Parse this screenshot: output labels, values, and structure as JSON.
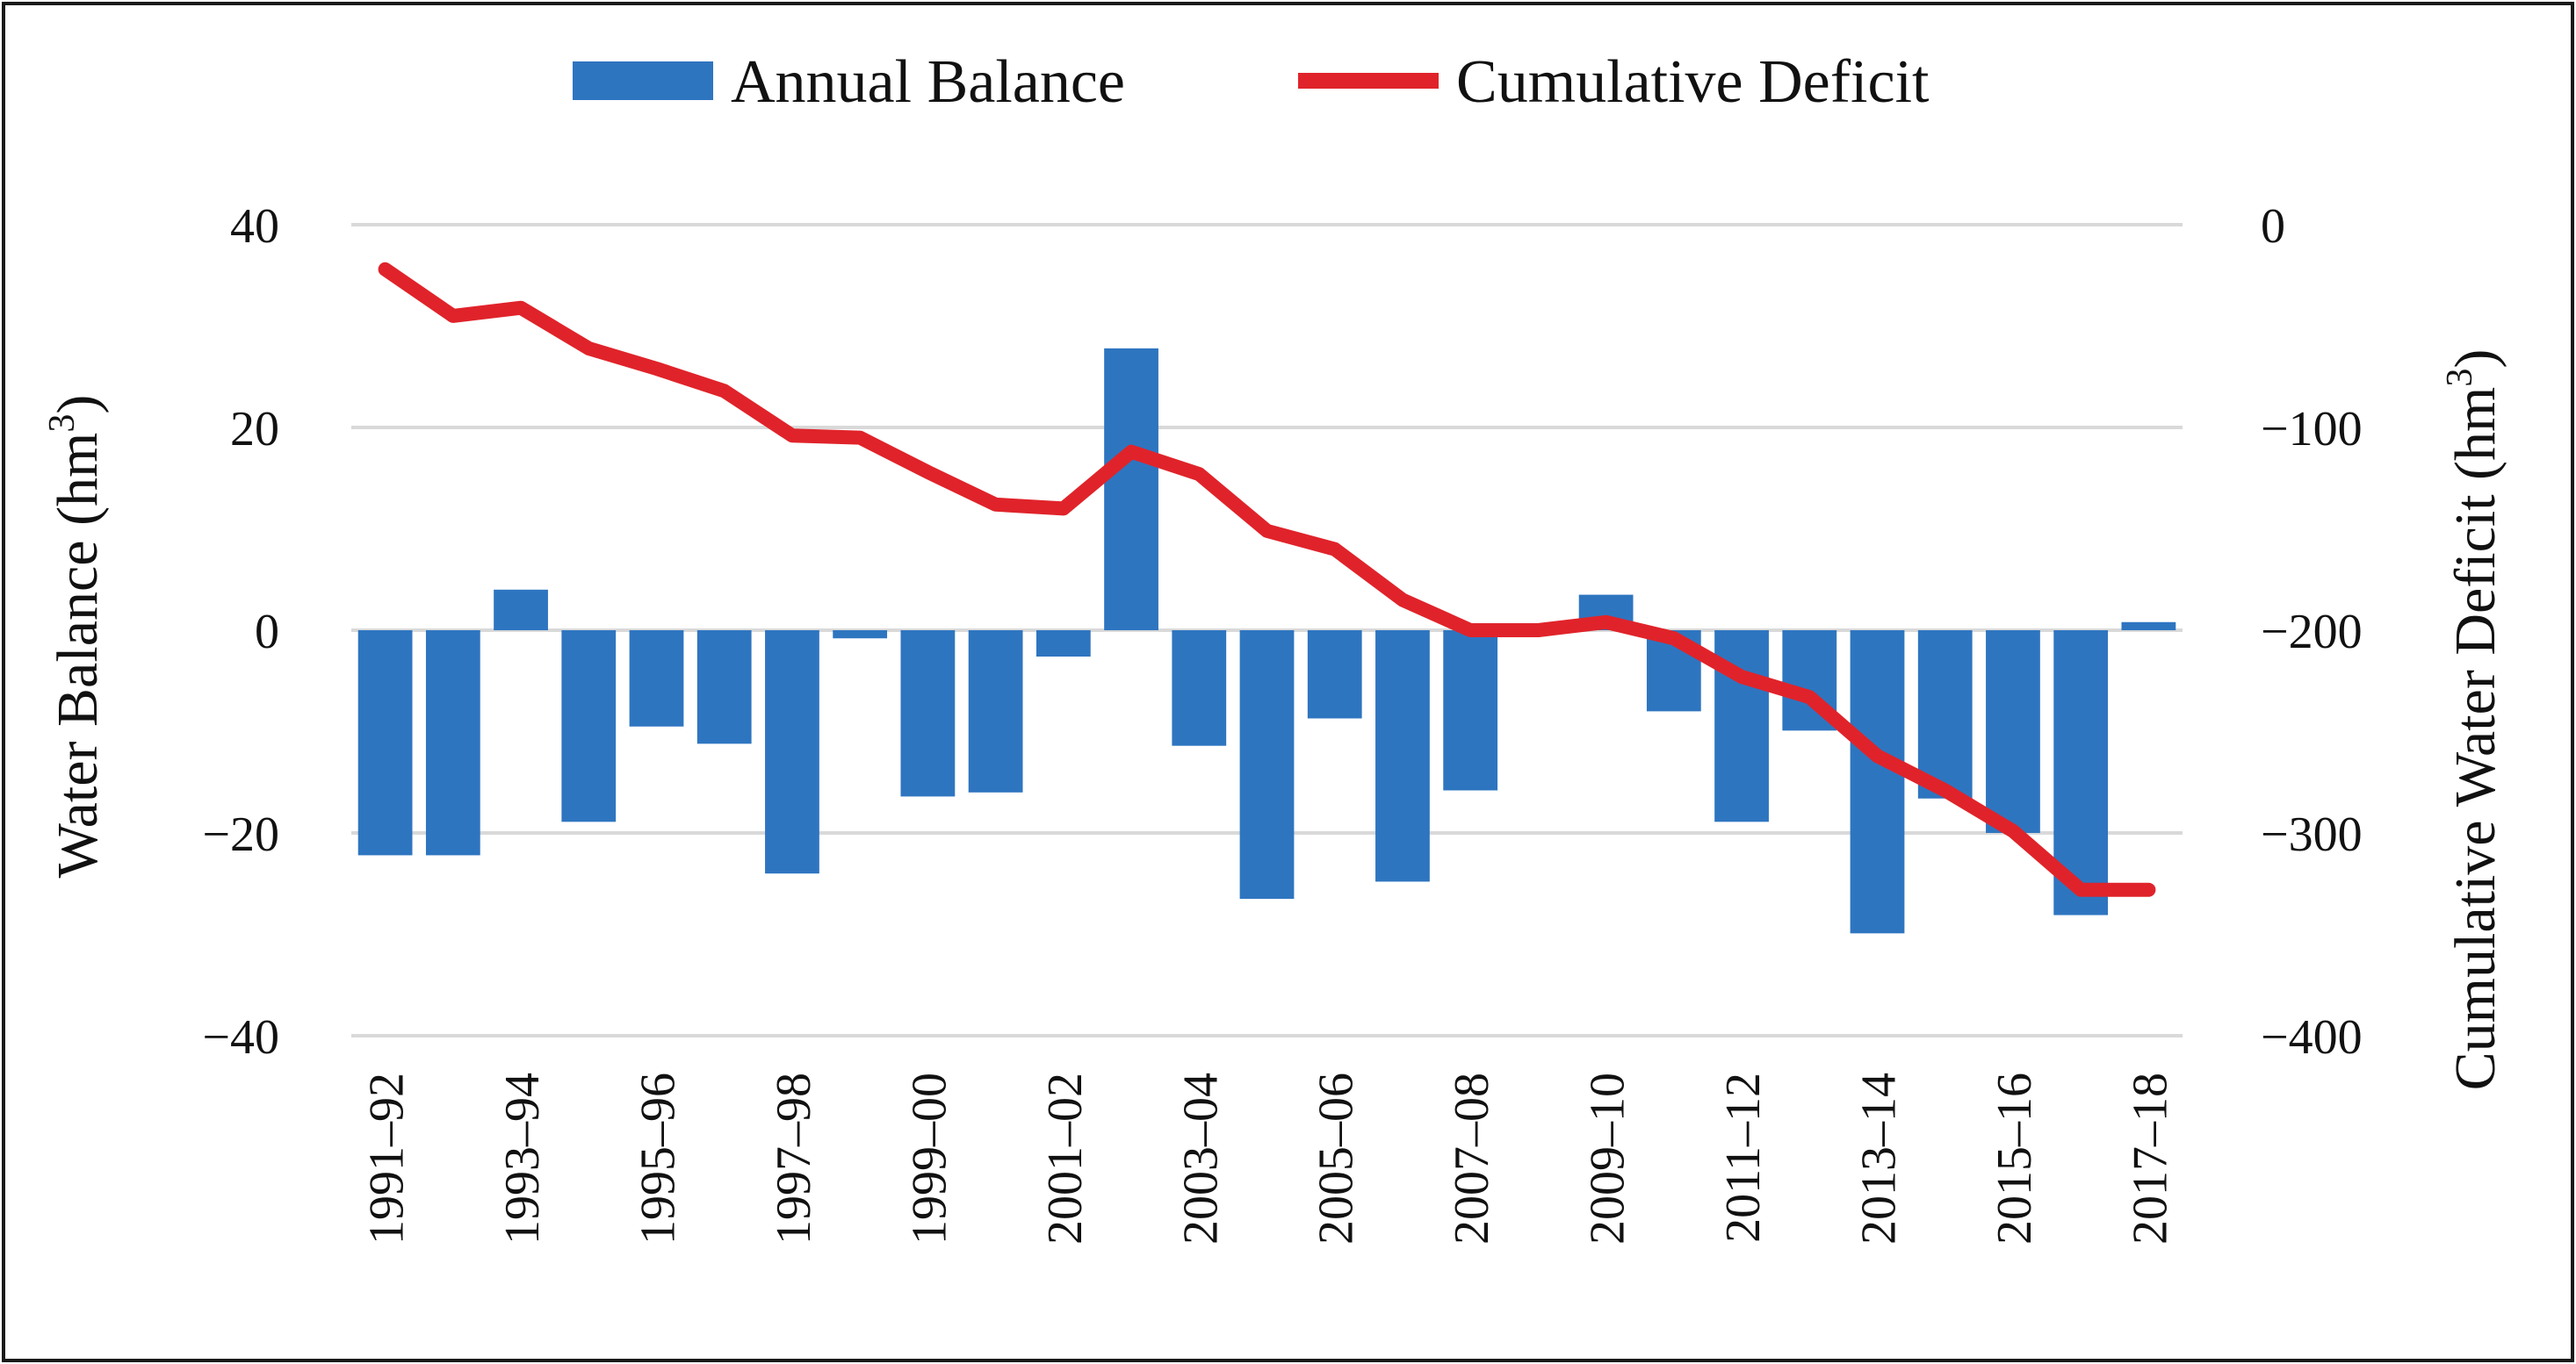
{
  "chart_data": {
    "type": "bar",
    "categories": [
      "1991–92",
      "1992–93",
      "1993–94",
      "1994–95",
      "1995–96",
      "1996–97",
      "1997–98",
      "1998–99",
      "1999–00",
      "2000–01",
      "2001–02",
      "2002–03",
      "2003–04",
      "2004–05",
      "2005–06",
      "2006–07",
      "2007–08",
      "2008–09",
      "2009–10",
      "2010–11",
      "2011–12",
      "2012–13",
      "2013–14",
      "2014–15",
      "2015–16",
      "2016–17",
      "2017–18"
    ],
    "tick_labels": [
      "1991–92",
      "1993–94",
      "1995–96",
      "1997–98",
      "1999–00",
      "2001–02",
      "2003–04",
      "2005–06",
      "2007–08",
      "2009–10",
      "2011–12",
      "2013–14",
      "2015–16",
      "2017–18"
    ],
    "series": [
      {
        "name": "Annual Balance",
        "type": "bar",
        "axis": "left",
        "color": "#2e75c0",
        "values": [
          -22.2,
          -22.2,
          4.0,
          -18.9,
          -9.5,
          -11.2,
          -24.0,
          -0.8,
          -16.4,
          -16.0,
          -2.6,
          27.8,
          -11.4,
          -26.5,
          -8.7,
          -24.8,
          -15.8,
          0.0,
          3.5,
          -8.0,
          -18.9,
          -9.9,
          -29.9,
          -16.6,
          -20.0,
          -28.1,
          0.8
        ]
      },
      {
        "name": "Cumulative Deficit",
        "type": "line",
        "axis": "right",
        "color": "#e0232a",
        "values": [
          -22,
          -45,
          -41,
          -61,
          -71,
          -82,
          -104,
          -105,
          -122,
          -138,
          -140,
          -112,
          -123,
          -151,
          -160,
          -185,
          -200,
          -200,
          -196,
          -204,
          -223,
          -233,
          -262,
          -279,
          -299,
          -328,
          -328
        ]
      }
    ],
    "ylabel": "Water Balance (hm3)",
    "ylabel_base": "Water Balance (hm",
    "ylabel_sup": "3",
    "ylabel_close": ")",
    "y2label": "Cumulative Water Deficit (hm3)",
    "y2label_base": "Cumulative Water Deficit (hm",
    "y2label_sup": "3",
    "y2label_close": ")",
    "ylim": [
      -40,
      40
    ],
    "y2lim": [
      -400,
      0
    ],
    "yticks": [
      40,
      20,
      0,
      -20,
      -40
    ],
    "ytick_labels": [
      "40",
      "20",
      "0",
      "−20",
      "−40"
    ],
    "y2ticks": [
      0,
      -100,
      -200,
      -300,
      -400
    ],
    "y2tick_labels": [
      "0",
      "−100",
      "−200",
      "−300",
      "−400"
    ],
    "grid": "horizontal",
    "legend_position": "top"
  }
}
